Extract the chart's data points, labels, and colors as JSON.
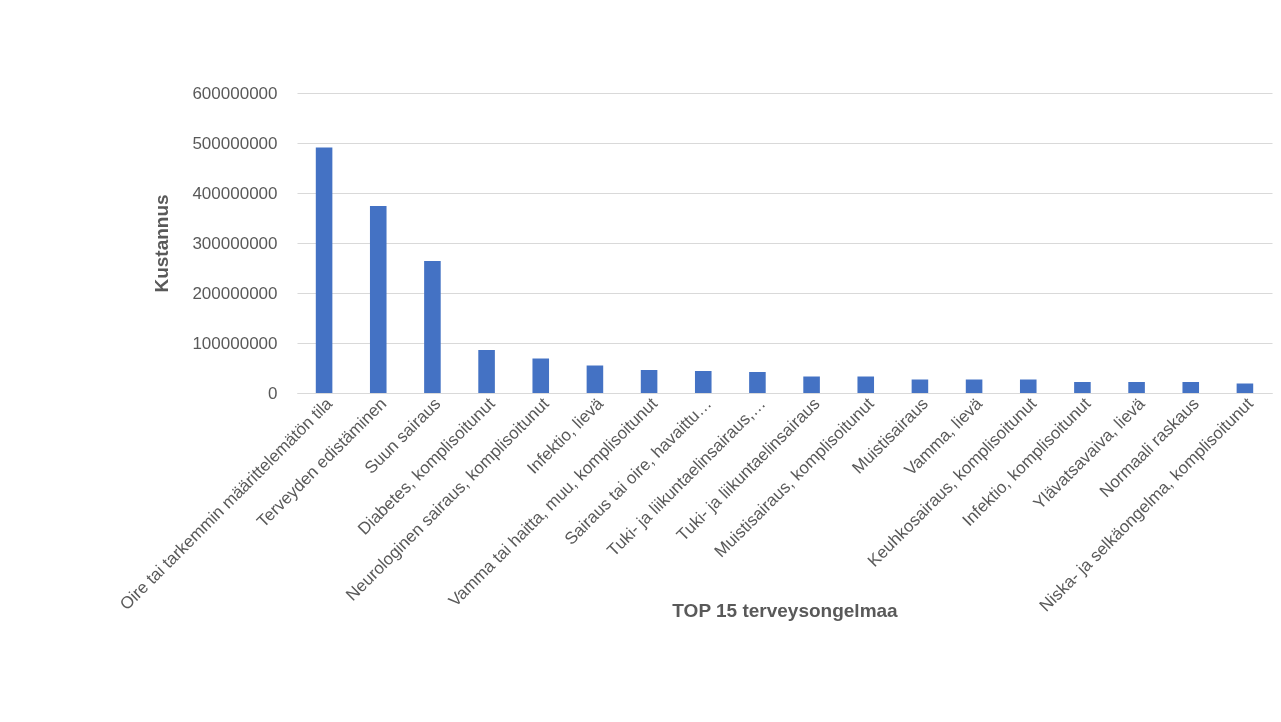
{
  "chart_data": {
    "type": "bar",
    "xlabel": "TOP 15 terveysongelmaa",
    "ylabel": "Kustannus",
    "categories": [
      "Oire tai tarkemmin määrittelemätön tila",
      "Terveyden edistäminen",
      "Suun sairaus",
      "Diabetes, komplisoitunut",
      "Neurologinen sairaus, komplisoitunut",
      "Infektio, lievä",
      "Vamma tai haitta, muu, komplisoitunut",
      "Sairaus tai oire, havaittu…",
      "Tuki- ja liikuntaelinsairaus,…",
      "Tuki- ja liikuntaelinsairaus",
      "Muistisairaus, komplisoitunut",
      "Muistisairaus",
      "Vamma, lievä",
      "Keuhkosairaus, komplisoitunut",
      "Infektio, komplisoitunut",
      "Ylävatsavaiva, lievä",
      "Normaali raskaus",
      "Niska- ja selkäongelma, komplisoitunut"
    ],
    "values": [
      491000000,
      374000000,
      264000000,
      86000000,
      69000000,
      55000000,
      46000000,
      44000000,
      42000000,
      33000000,
      33000000,
      27000000,
      27000000,
      27000000,
      22000000,
      22000000,
      22000000,
      19000000
    ],
    "color": "#4472c4",
    "ylim": [
      0,
      600000000
    ],
    "yticks": [
      0,
      100000000,
      200000000,
      300000000,
      400000000,
      500000000,
      600000000
    ],
    "grid": "y"
  }
}
